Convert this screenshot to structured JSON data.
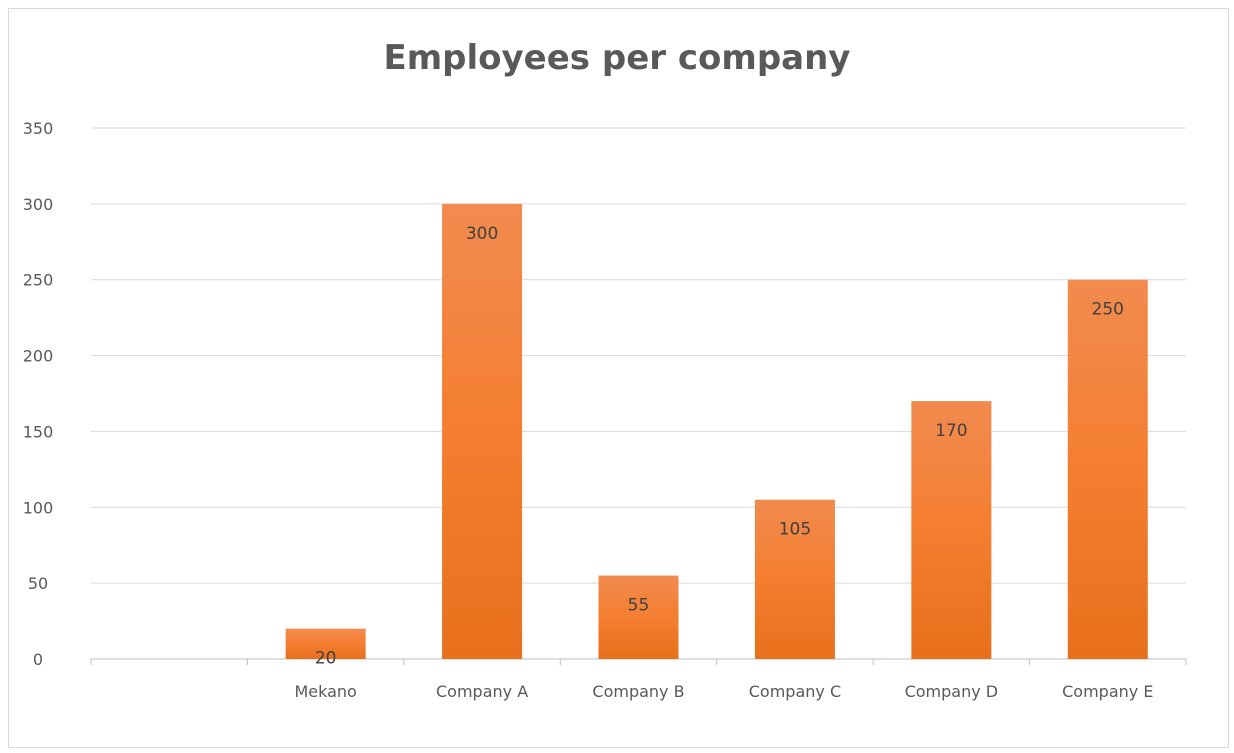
{
  "chart_data": {
    "type": "bar",
    "title": "Employees per company",
    "categories": [
      "",
      "Mekano",
      "Company A",
      "Company B",
      "Company C",
      "Company D",
      "Company E"
    ],
    "values": [
      null,
      20,
      300,
      55,
      105,
      170,
      250
    ],
    "data_labels": [
      "",
      "20",
      "300",
      "55",
      "105",
      "170",
      "250"
    ],
    "y_ticks": [
      0,
      50,
      100,
      150,
      200,
      250,
      300,
      350
    ],
    "ylim": [
      0,
      350
    ],
    "xlabel": "",
    "ylabel": "",
    "grid": true,
    "legend": "none",
    "colors": {
      "bar_top": "#F28B4F",
      "bar_mid": "#F47E30",
      "bar_bottom": "#E8701C",
      "gridline": "#d9d9d9",
      "axis": "#bfbfbf",
      "text": "#595959"
    }
  }
}
